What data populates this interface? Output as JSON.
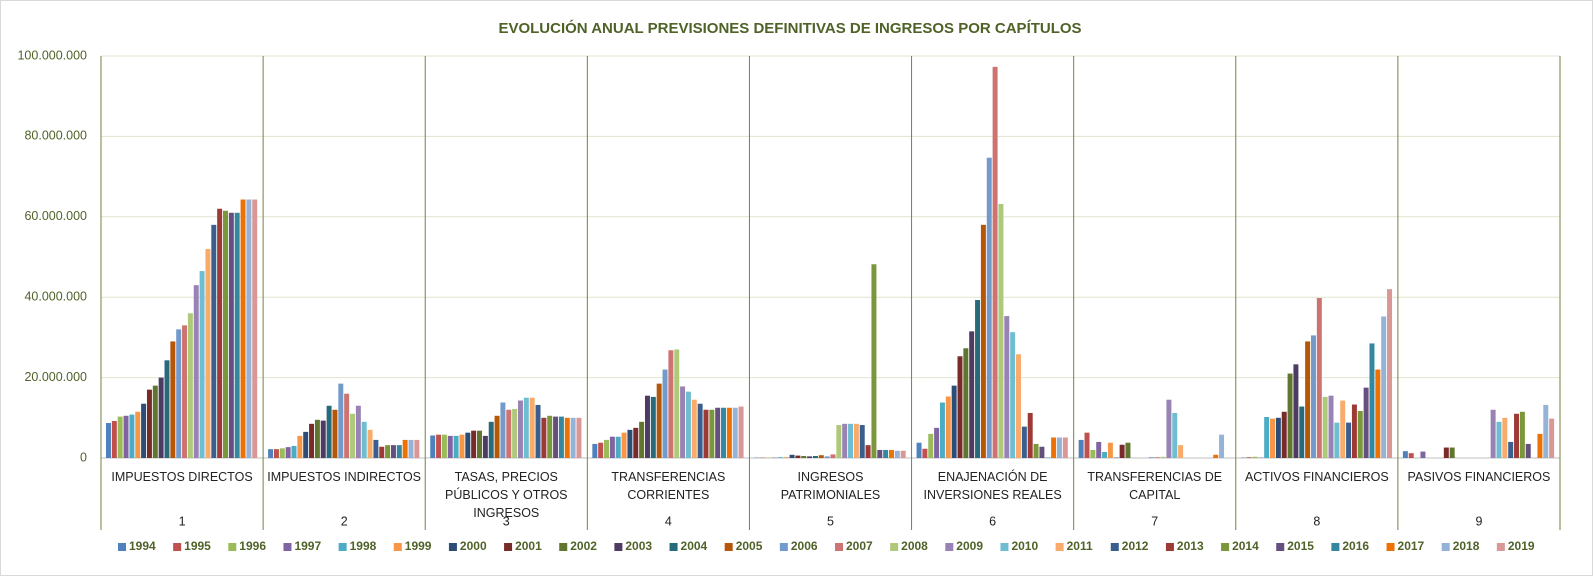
{
  "chart_data": {
    "type": "bar",
    "title": "EVOLUCIÓN ANUAL PREVISIONES DEFINITIVAS DE INGRESOS POR CAPÍTULOS",
    "categories": [
      "IMPUESTOS DIRECTOS",
      "IMPUESTOS INDIRECTOS",
      "TASAS, PRECIOS PÚBLICOS Y OTROS INGRESOS",
      "TRANSFERENCIAS CORRIENTES",
      "INGRESOS PATRIMONIALES",
      "ENAJENACIÓN DE INVERSIONES REALES",
      "TRANSFERENCIAS DE CAPITAL",
      "ACTIVOS FINANCIEROS",
      "PASIVOS FINANCIEROS"
    ],
    "category_numbers": [
      "1",
      "2",
      "3",
      "4",
      "5",
      "6",
      "7",
      "8",
      "9"
    ],
    "ylim": [
      0,
      100000000
    ],
    "yticks": [
      0,
      {
        "value": 20000000,
        "label": "20.000.000"
      },
      {
        "value": 40000000,
        "label": "40.000.000"
      },
      {
        "value": 60000000,
        "label": "60.000.000"
      },
      {
        "value": 80000000,
        "label": "80.000.000"
      },
      {
        "value": 100000000,
        "label": "100.000.000"
      }
    ],
    "grid": true,
    "legend": "bottom",
    "series": [
      {
        "name": "1994",
        "color": "#4f81bd",
        "values": [
          8700000,
          2200000,
          5600000,
          3500000,
          100000,
          3800000,
          4500000,
          100000,
          1700000
        ]
      },
      {
        "name": "1995",
        "color": "#c0504d",
        "values": [
          9200000,
          2200000,
          5800000,
          3800000,
          100000,
          2300000,
          6300000,
          200000,
          1200000
        ]
      },
      {
        "name": "1996",
        "color": "#9bbb59",
        "values": [
          10300000,
          2400000,
          5800000,
          4500000,
          100000,
          6000000,
          2000000,
          300000,
          0
        ]
      },
      {
        "name": "1997",
        "color": "#8064a2",
        "values": [
          10500000,
          2700000,
          5500000,
          5300000,
          100000,
          7500000,
          4000000,
          100000,
          1600000
        ]
      },
      {
        "name": "1998",
        "color": "#4bacc6",
        "values": [
          10800000,
          3000000,
          5500000,
          5300000,
          200000,
          13800000,
          1500000,
          10200000,
          0
        ]
      },
      {
        "name": "1999",
        "color": "#f79646",
        "values": [
          11500000,
          5500000,
          5800000,
          6300000,
          200000,
          15300000,
          3800000,
          9800000,
          0
        ]
      },
      {
        "name": "2000",
        "color": "#2c4d75",
        "values": [
          13500000,
          6500000,
          6300000,
          7000000,
          800000,
          18000000,
          100000,
          10000000,
          0
        ]
      },
      {
        "name": "2001",
        "color": "#772c2a",
        "values": [
          17000000,
          8500000,
          6800000,
          7500000,
          600000,
          25300000,
          3300000,
          11500000,
          2600000
        ]
      },
      {
        "name": "2002",
        "color": "#5f7530",
        "values": [
          18000000,
          9500000,
          6800000,
          9000000,
          500000,
          27300000,
          3800000,
          21000000,
          2600000
        ]
      },
      {
        "name": "2003",
        "color": "#4d3b62",
        "values": [
          20000000,
          9300000,
          5500000,
          15500000,
          400000,
          31500000,
          0,
          23300000,
          0
        ]
      },
      {
        "name": "2004",
        "color": "#276a7c",
        "values": [
          24300000,
          13000000,
          9000000,
          15200000,
          500000,
          39300000,
          0,
          12800000,
          0
        ]
      },
      {
        "name": "2005",
        "color": "#b65708",
        "values": [
          29000000,
          12000000,
          10500000,
          18500000,
          700000,
          58000000,
          0,
          29000000,
          0
        ]
      },
      {
        "name": "2006",
        "color": "#729aca",
        "values": [
          32000000,
          18500000,
          13800000,
          22000000,
          400000,
          74700000,
          200000,
          30500000,
          0
        ]
      },
      {
        "name": "2007",
        "color": "#cd7371",
        "values": [
          33000000,
          16000000,
          12000000,
          26800000,
          900000,
          97300000,
          200000,
          39800000,
          0
        ]
      },
      {
        "name": "2008",
        "color": "#afc97a",
        "values": [
          36000000,
          11000000,
          12200000,
          27000000,
          8200000,
          63200000,
          300000,
          15200000,
          0
        ]
      },
      {
        "name": "2009",
        "color": "#9983b5",
        "values": [
          43000000,
          13000000,
          14300000,
          17800000,
          8500000,
          35300000,
          14500000,
          15500000,
          12000000
        ]
      },
      {
        "name": "2010",
        "color": "#6fbdd1",
        "values": [
          46500000,
          9000000,
          15000000,
          16500000,
          8500000,
          31300000,
          11200000,
          8800000,
          9000000
        ]
      },
      {
        "name": "2011",
        "color": "#f9ab6b",
        "values": [
          52000000,
          7000000,
          15000000,
          14500000,
          8500000,
          25800000,
          3200000,
          14300000,
          10000000
        ]
      },
      {
        "name": "2012",
        "color": "#3a5f8f",
        "values": [
          58000000,
          4500000,
          13200000,
          13500000,
          8200000,
          7800000,
          0,
          8800000,
          4000000
        ]
      },
      {
        "name": "2013",
        "color": "#9d3a36",
        "values": [
          62000000,
          2800000,
          10000000,
          12000000,
          3200000,
          11200000,
          0,
          13300000,
          11000000
        ]
      },
      {
        "name": "2014",
        "color": "#7a973c",
        "values": [
          61500000,
          3200000,
          10500000,
          12000000,
          48200000,
          3500000,
          0,
          11700000,
          11500000
        ]
      },
      {
        "name": "2015",
        "color": "#654f7f",
        "values": [
          61000000,
          3200000,
          10300000,
          12500000,
          2000000,
          2800000,
          0,
          17500000,
          3500000
        ]
      },
      {
        "name": "2016",
        "color": "#33889f",
        "values": [
          61000000,
          3200000,
          10300000,
          12500000,
          2000000,
          100000,
          0,
          28500000,
          0
        ]
      },
      {
        "name": "2017",
        "color": "#ec7206",
        "values": [
          64300000,
          4500000,
          10000000,
          12500000,
          2000000,
          5100000,
          800000,
          22000000,
          6000000
        ]
      },
      {
        "name": "2018",
        "color": "#95b3d7",
        "values": [
          64300000,
          4500000,
          10000000,
          12500000,
          1800000,
          5100000,
          5800000,
          35200000,
          13200000
        ]
      },
      {
        "name": "2019",
        "color": "#d99795",
        "values": [
          64300000,
          4500000,
          10000000,
          12800000,
          1800000,
          5100000,
          0,
          42000000,
          9800000
        ]
      }
    ]
  }
}
